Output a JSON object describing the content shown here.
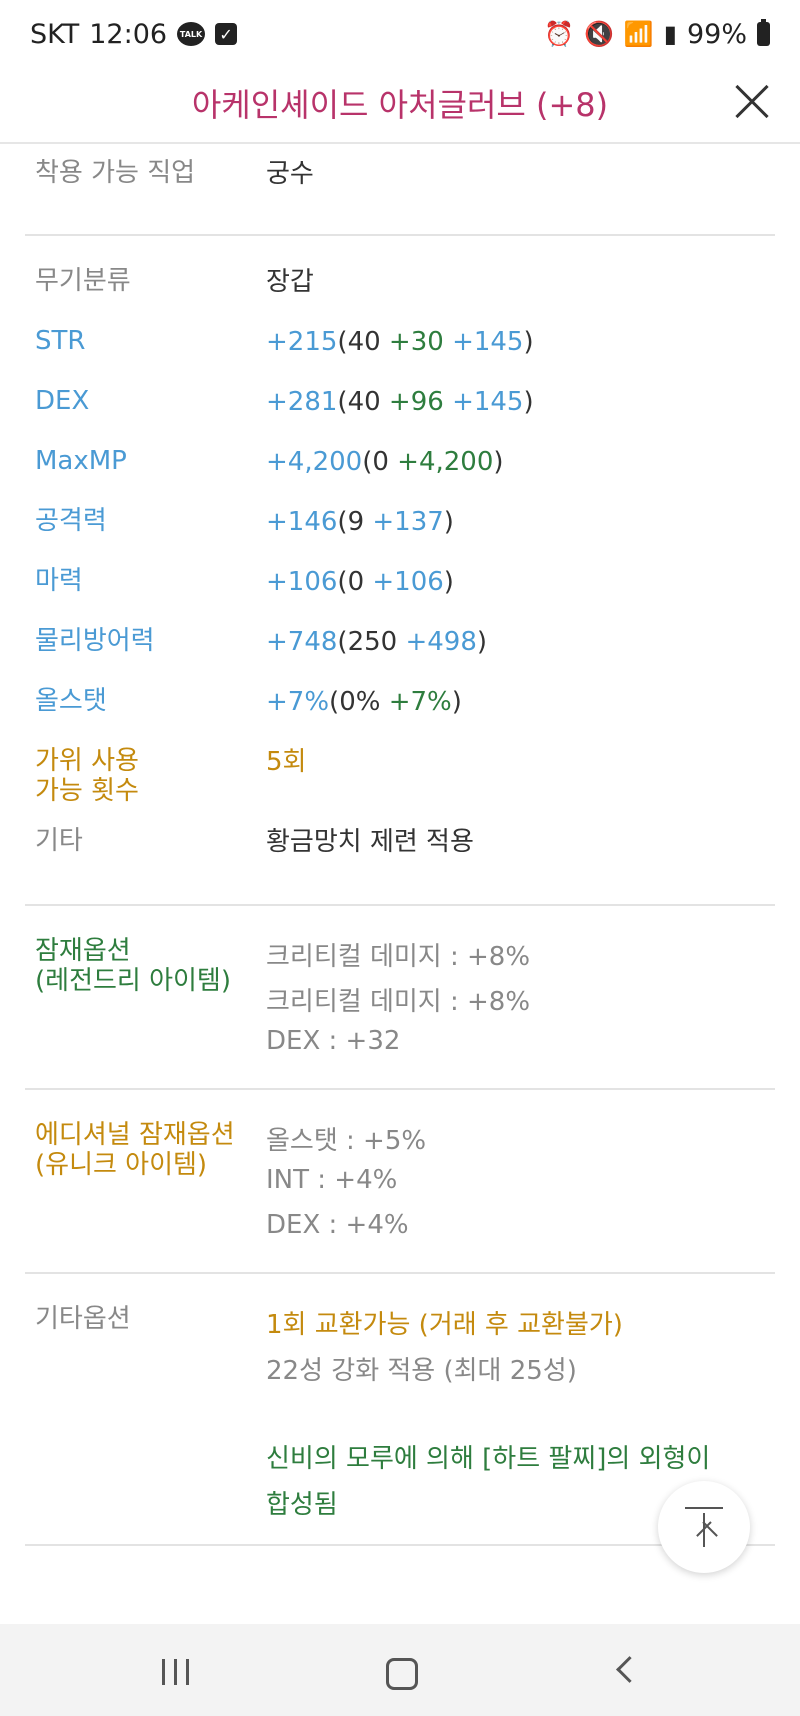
{
  "status_bar": {
    "carrier": "SKT",
    "time": "12:06",
    "talk_badge": "TALK",
    "battery": "99%"
  },
  "header": {
    "title": "아케인셰이드 아처글러브 (+8)"
  },
  "job": {
    "label": "착용 가능 직업",
    "value": "궁수"
  },
  "stats": {
    "category": {
      "label": "무기분류",
      "value": "장갑"
    },
    "str": {
      "label": "STR",
      "total": "+215",
      "open": "(40 ",
      "p1": "+30",
      "sp": " ",
      "p2": "+145",
      "close": ")"
    },
    "dex": {
      "label": "DEX",
      "total": "+281",
      "open": "(40 ",
      "p1": "+96",
      "sp": " ",
      "p2": "+145",
      "close": ")"
    },
    "maxmp": {
      "label": "MaxMP",
      "total": "+4,200",
      "open": "(0 ",
      "p1": "+4,200",
      "close": ")"
    },
    "attack": {
      "label": "공격력",
      "total": "+146",
      "open": "(9 ",
      "p1": "+137",
      "close": ")"
    },
    "magic": {
      "label": "마력",
      "total": "+106",
      "open": "(0 ",
      "p1": "+106",
      "close": ")"
    },
    "defense": {
      "label": "물리방어력",
      "total": "+748",
      "open": "(250 ",
      "p1": "+498",
      "close": ")"
    },
    "allstat": {
      "label": "올스탯",
      "total": "+7%",
      "open": "(0% ",
      "p1": "+7%",
      "close": ")"
    },
    "scissors": {
      "label_line1": "가위 사용",
      "label_line2": "가능 횟수",
      "value": "5회"
    },
    "etc": {
      "label": "기타",
      "value": "황금망치 제련 적용"
    }
  },
  "potential": {
    "label_line1": "잠재옵션",
    "label_line2": "(레전드리 아이템)",
    "lines": [
      "크리티컬 데미지 : +8%",
      "크리티컬 데미지 : +8%",
      "DEX : +32"
    ]
  },
  "additional_potential": {
    "label_line1": "에디셔널 잠재옵션",
    "label_line2": "(유니크 아이템)",
    "lines": [
      "올스탯 : +5%",
      "INT : +4%",
      "DEX : +4%"
    ]
  },
  "other_options": {
    "label": "기타옵션",
    "exchange": "1회 교환가능 (거래 후 교환불가)",
    "starforce": "22성 강화 적용 (최대 25성)",
    "fusion_line1": "신비의 모루에 의해 [하트 팔찌]의 외형이",
    "fusion_line2": "합성됨"
  },
  "colors": {
    "title": "#b8336a",
    "stat_label": "#4a9ad4",
    "bonus_green": "#2e7d3e",
    "gold": "#c48a0e",
    "gray": "#888888"
  }
}
